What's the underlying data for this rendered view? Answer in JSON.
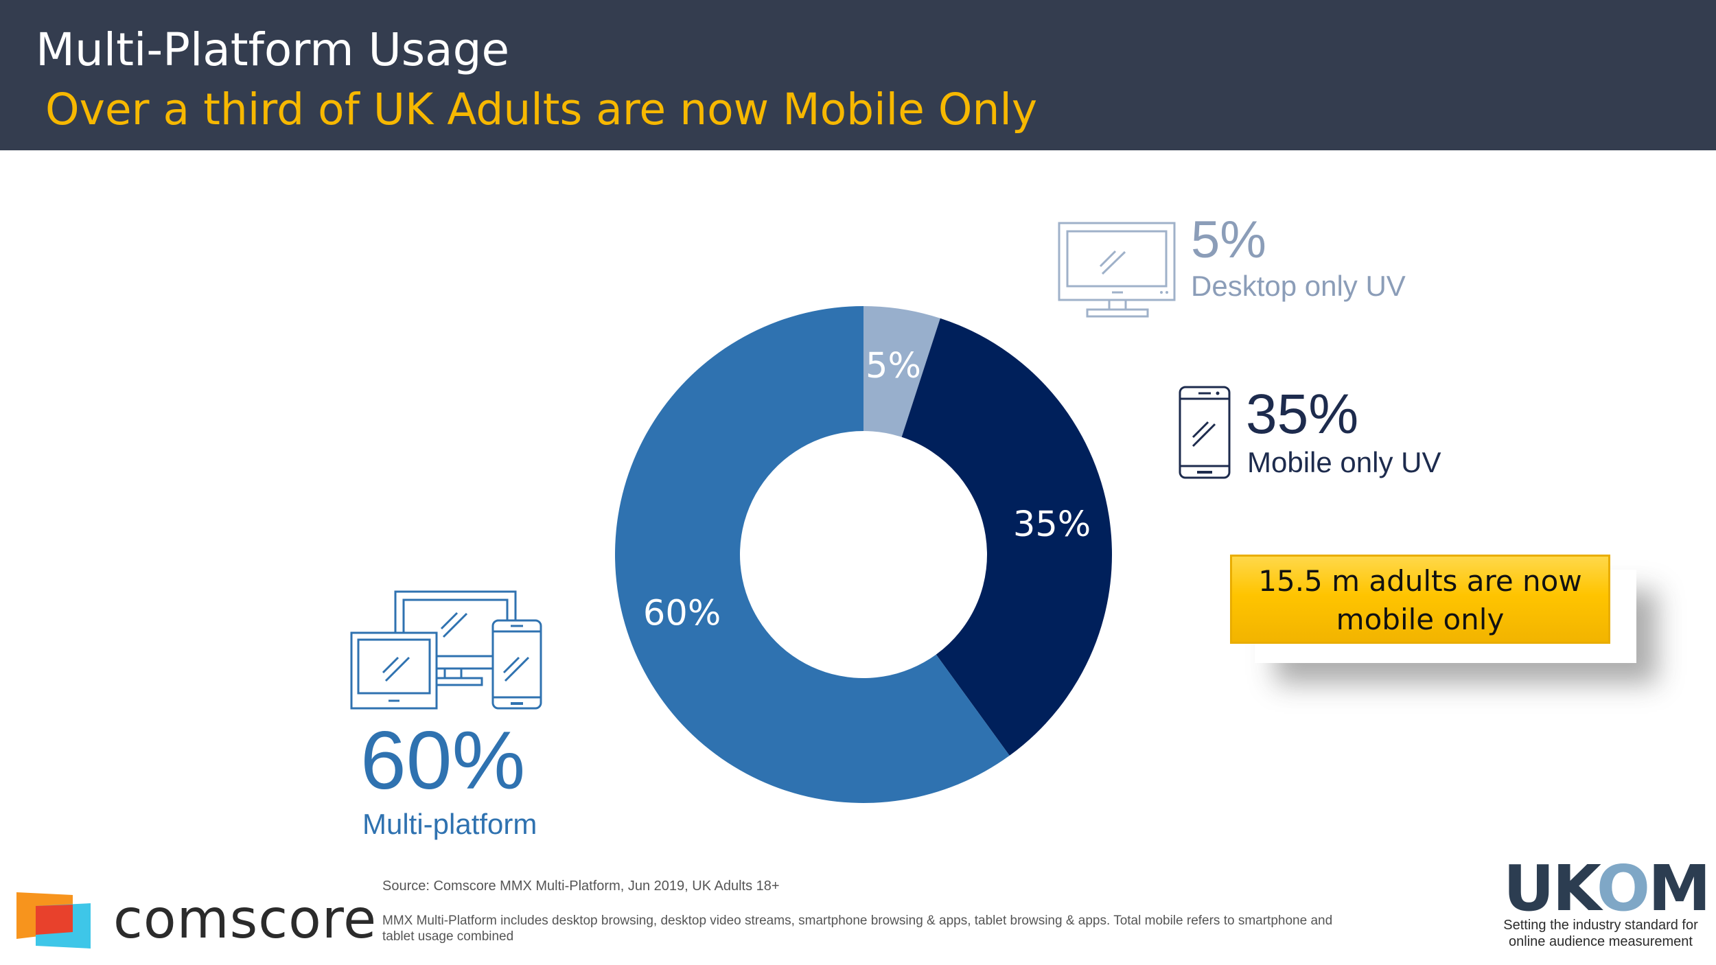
{
  "header": {
    "title": "Multi-Platform Usage",
    "subtitle": "Over a third of UK Adults are now Mobile Only"
  },
  "colors": {
    "header_bg": "#343d4f",
    "subtitle": "#f7b800",
    "desktop_only": "#98afcc",
    "mobile_only": "#00205b",
    "multi_platform": "#2f72b0",
    "callout": "#ffc400"
  },
  "chart_data": {
    "type": "pie",
    "donut": true,
    "title": "",
    "categories": [
      "Desktop only UV",
      "Mobile only UV",
      "Multi-platform"
    ],
    "values": [
      5,
      35,
      60
    ],
    "value_labels": [
      "5%",
      "35%",
      "60%"
    ],
    "slice_colors": [
      "#98afcc",
      "#00205b",
      "#2f72b0"
    ],
    "start_angle": "12 o'clock",
    "direction": "clockwise"
  },
  "segments": {
    "desktop": {
      "value_text": "5%",
      "label": "Desktop only UV",
      "icon": "desktop-monitor-icon"
    },
    "mobile": {
      "value_text": "35%",
      "label": "Mobile only UV",
      "icon": "smartphone-icon"
    },
    "multi": {
      "value_text": "60%",
      "label": "Multi-platform",
      "icon": "multi-device-icon"
    }
  },
  "callout": {
    "line1": "15.5 m adults are now",
    "line2": "mobile only"
  },
  "footer": {
    "source": "Source: Comscore MMX Multi-Platform, Jun 2019, UK Adults 18+",
    "note": "MMX Multi-Platform includes desktop browsing, desktop video streams, smartphone browsing & apps, tablet browsing & apps. Total mobile refers to smartphone and tablet usage combined",
    "comscore_logo_text": "comscore",
    "ukom_logo_text": "UKOM",
    "ukom_tagline": "Setting the industry standard for online audience measurement"
  }
}
